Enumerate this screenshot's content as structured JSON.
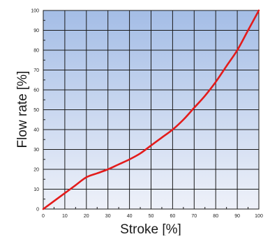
{
  "chart_data": {
    "type": "line",
    "title": "",
    "xlabel": "Stroke [%]",
    "ylabel": "Flow rate [%]",
    "xlim": [
      0,
      100
    ],
    "ylim": [
      0,
      100
    ],
    "x_ticks": [
      0,
      10,
      20,
      30,
      40,
      50,
      60,
      70,
      80,
      90,
      100
    ],
    "y_ticks": [
      0,
      10,
      20,
      30,
      40,
      50,
      60,
      70,
      80,
      90,
      100
    ],
    "grid": true,
    "series": [
      {
        "color": "#e31b1b",
        "x": [
          0,
          5,
          10,
          15,
          20,
          25,
          30,
          35,
          40,
          45,
          50,
          55,
          60,
          65,
          70,
          75,
          80,
          85,
          90,
          95,
          100
        ],
        "y": [
          0,
          4,
          8,
          12,
          16,
          18,
          20,
          22.5,
          25,
          28,
          32,
          36,
          40,
          45,
          51,
          57,
          64,
          72,
          80,
          90,
          100
        ]
      }
    ],
    "colors": {
      "background_top": "#a4bde6",
      "background_bottom": "#eef1f9",
      "grid": "#1a1a1a",
      "line": "#e31b1b"
    }
  }
}
